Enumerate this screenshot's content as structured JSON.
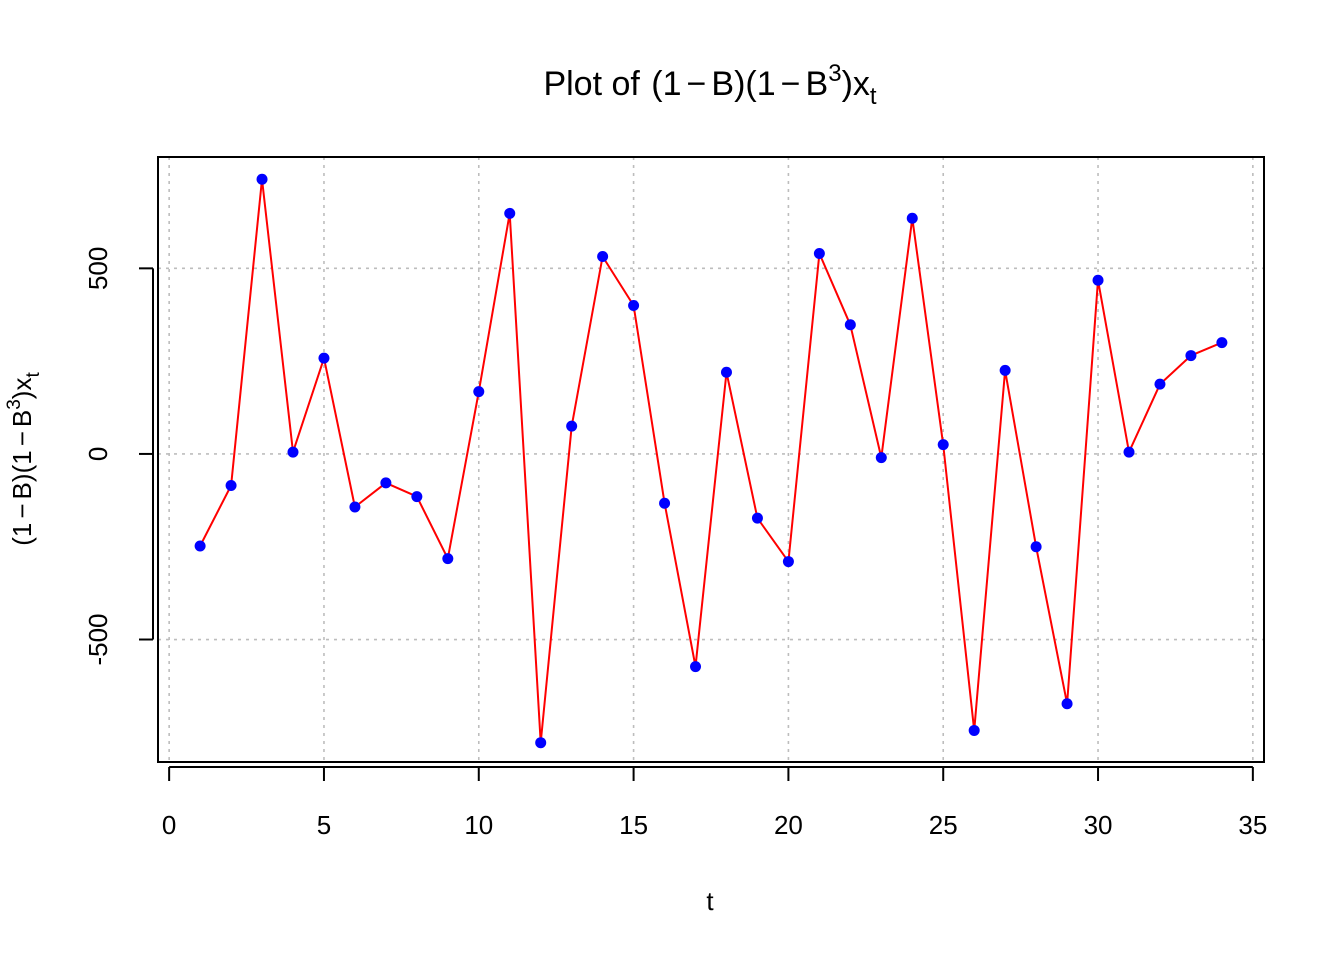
{
  "chart_data": {
    "type": "line",
    "title": {
      "prefix": "Plot of ",
      "open1": "(",
      "one1": "1",
      "minus1": "−",
      "b1": "B",
      "close1": ")",
      "open2": "(",
      "one2": "1",
      "minus2": "−",
      "b2": "B",
      "exp": "3",
      "close2": ")",
      "x": "x",
      "sub": "t"
    },
    "xlabel": "t",
    "ylabel": {
      "open1": "(",
      "one1": "1",
      "minus1": "−",
      "b1": "B",
      "close1": ")",
      "open2": "(",
      "one2": "1",
      "minus2": "−",
      "b2": "B",
      "exp": "3",
      "close2": ")",
      "x": "x",
      "sub": "t"
    },
    "xlim": [
      -0.36,
      35.36
    ],
    "ylim": [
      -830,
      800
    ],
    "x_ticks": [
      0,
      5,
      10,
      15,
      20,
      25,
      30,
      35
    ],
    "x_tick_labels": [
      "0",
      "5",
      "10",
      "15",
      "20",
      "25",
      "30",
      "35"
    ],
    "y_ticks": [
      -500,
      0,
      500
    ],
    "y_tick_labels": [
      "-500",
      "0",
      "500"
    ],
    "grid": true,
    "series": [
      {
        "line_color": "#ff0000",
        "point_color": "#0000ff",
        "x": [
          1,
          2,
          3,
          4,
          5,
          6,
          7,
          8,
          9,
          10,
          11,
          12,
          13,
          14,
          15,
          16,
          17,
          18,
          19,
          20,
          21,
          22,
          23,
          24,
          25,
          26,
          27,
          28,
          29,
          30,
          31,
          32,
          33,
          34
        ],
        "values": [
          -248,
          -85,
          740,
          5,
          258,
          -143,
          -78,
          -115,
          -282,
          168,
          648,
          -778,
          75,
          532,
          400,
          -133,
          -573,
          220,
          -173,
          -290,
          540,
          348,
          -10,
          635,
          25,
          -745,
          225,
          -250,
          -673,
          468,
          5,
          188,
          265,
          300
        ]
      }
    ]
  }
}
